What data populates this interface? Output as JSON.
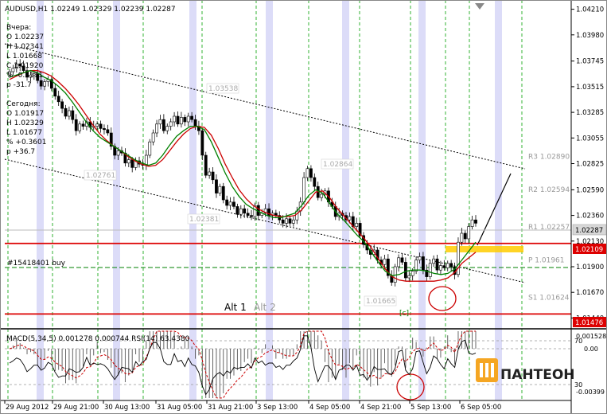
{
  "header": {
    "symbol_line": "AUDUSD,H1  1.02249 1.02329 1.02239 1.02287",
    "macd_label": "MACD(5,34,5) 0.001278 0.000744",
    "rsi_label": "RSI(14) 63.4380"
  },
  "info_panel": {
    "yesterday_title": "Вчера:",
    "yesterday": [
      "O 1.02237",
      "H 1.02341",
      "L 1.01668",
      "C 1.01920",
      "% -0.3111",
      "p -31.7"
    ],
    "today_title": "Сегодня:",
    "today": [
      "O 1.01917",
      "H 1.02329",
      "L 1.01677",
      "% +0.3601",
      "p +36.7"
    ]
  },
  "order_label": "#15418401 buy",
  "wave_labels": {
    "alt1": "Alt 1",
    "alt2": "Alt 2",
    "c": "[c]"
  },
  "pivots": [
    {
      "label": "R3",
      "value": "1.02890"
    },
    {
      "label": "R2",
      "value": "1.02594"
    },
    {
      "label": "R1",
      "value": "1.02257"
    },
    {
      "label": "P",
      "value": "1.01961"
    },
    {
      "label": "S1",
      "value": "1.01624"
    }
  ],
  "faded_price_labels": [
    "1.03538",
    "1.02761",
    "1.02864",
    "1.02381",
    "1.01665"
  ],
  "price_tags": {
    "current": "1.02287",
    "support_top": "1.02109",
    "support_bottom": "1.01476"
  },
  "logo_text": "ПАНТЕОН",
  "colors": {
    "bull_candle": "#ffffff",
    "bear_candle": "#000000",
    "ma_fast": "#008000",
    "ma_slow": "#cc0000",
    "support": "#dd0000",
    "highlight": "#ffcc00",
    "vgrid": "#00a000",
    "time_band": "#dcdcf8"
  },
  "chart_data": {
    "type": "candlestick",
    "title": "AUDUSD,H1",
    "y_ticks": [
      "1.04210",
      "1.03980",
      "1.03745",
      "1.03515",
      "1.03285",
      "1.03055",
      "1.02825",
      "1.02590",
      "1.02360",
      "1.02130",
      "1.01900",
      "1.01670",
      "1.01440"
    ],
    "x_ticks": [
      "29 Aug 2012",
      "29 Aug 21:00",
      "30 Aug 13:00",
      "31 Aug 05:00",
      "31 Aug 21:00",
      "3 Sep 13:00",
      "4 Sep 05:00",
      "4 Sep 21:00",
      "5 Sep 13:00",
      "6 Sep 05:00"
    ],
    "ylim": [
      1.0135,
      1.0425
    ],
    "price_path": [
      1.0365,
      1.0368,
      1.0372,
      1.037,
      1.0366,
      1.036,
      1.0362,
      1.0363,
      1.0357,
      1.0352,
      1.0356,
      1.0358,
      1.035,
      1.0343,
      1.0338,
      1.0332,
      1.0325,
      1.033,
      1.0322,
      1.0312,
      1.0318,
      1.0316,
      1.032,
      1.0315,
      1.0316,
      1.0318,
      1.0314,
      1.0313,
      1.031,
      1.0298,
      1.029,
      1.0294,
      1.0292,
      1.0283,
      1.0286,
      1.0279,
      1.0285,
      1.0282,
      1.0281,
      1.029,
      1.0302,
      1.031,
      1.0318,
      1.0322,
      1.0312,
      1.0316,
      1.032,
      1.0325,
      1.0318,
      1.0324,
      1.032,
      1.0325,
      1.0322,
      1.0316,
      1.0312,
      1.029,
      1.0272,
      1.0275,
      1.0268,
      1.0256,
      1.0262,
      1.025,
      1.0245,
      1.0248,
      1.0244,
      1.0237,
      1.0242,
      1.0238,
      1.0236,
      1.0235,
      1.0245,
      1.0236,
      1.0238,
      1.0242,
      1.0236,
      1.0238,
      1.0236,
      1.0232,
      1.0229,
      1.0233,
      1.0229,
      1.0232,
      1.024,
      1.0248,
      1.027,
      1.0278,
      1.027,
      1.0262,
      1.0252,
      1.0255,
      1.0258,
      1.0248,
      1.0244,
      1.0235,
      1.0238,
      1.0236,
      1.0232,
      1.0235,
      1.0226,
      1.0229,
      1.0218,
      1.021,
      1.0205,
      1.0201,
      1.0205,
      1.0196,
      1.0192,
      1.0197,
      1.0182,
      1.0176,
      1.019,
      1.0198,
      1.0194,
      1.018,
      1.0182,
      1.0186,
      1.0196,
      1.0199,
      1.0187,
      1.0181,
      1.0193,
      1.0197,
      1.0187,
      1.0191,
      1.0189,
      1.0193,
      1.019,
      1.0183,
      1.0212,
      1.022,
      1.0215,
      1.0226,
      1.0232,
      1.0229
    ],
    "ma_fast_path": [
      1.036,
      1.0362,
      1.0364,
      1.0366,
      1.0364,
      1.036,
      1.0357,
      1.0352,
      1.0346,
      1.0338,
      1.0329,
      1.032,
      1.0312,
      1.0306,
      1.0302,
      1.0298,
      1.0294,
      1.029,
      1.0286,
      1.0283,
      1.0281,
      1.0283,
      1.029,
      1.0299,
      1.0307,
      1.0312,
      1.0316,
      1.0316,
      1.0313,
      1.0302,
      1.0288,
      1.0274,
      1.0262,
      1.0253,
      1.0246,
      1.0242,
      1.0239,
      1.0236,
      1.0234,
      1.0234,
      1.0236,
      1.0238,
      1.0245,
      1.0254,
      1.0259,
      1.0256,
      1.0247,
      1.0238,
      1.0232,
      1.0225,
      1.0218,
      1.0212,
      1.0203,
      1.0194,
      1.0186,
      1.0182,
      1.0183,
      1.0186,
      1.0187,
      1.0187,
      1.0186,
      1.0184,
      1.0183,
      1.0184,
      1.0188,
      1.0196,
      1.0204,
      1.0212
    ],
    "ma_slow_path": [
      1.0358,
      1.0361,
      1.0364,
      1.0366,
      1.0366,
      1.0364,
      1.0361,
      1.0356,
      1.035,
      1.0343,
      1.0335,
      1.0326,
      1.0317,
      1.0309,
      1.0303,
      1.0298,
      1.0294,
      1.0289,
      1.0285,
      1.0282,
      1.028,
      1.0281,
      1.0286,
      1.0294,
      1.0302,
      1.0309,
      1.0314,
      1.0316,
      1.0315,
      1.0308,
      1.0296,
      1.0282,
      1.027,
      1.0259,
      1.0251,
      1.0245,
      1.0241,
      1.0238,
      1.0236,
      1.0235,
      1.0235,
      1.0236,
      1.0241,
      1.0249,
      1.0257,
      1.0258,
      1.0252,
      1.0243,
      1.0236,
      1.0229,
      1.0222,
      1.0215,
      1.0207,
      1.0197,
      1.0188,
      1.0181,
      1.0178,
      1.0177,
      1.0177,
      1.0177,
      1.0177,
      1.0177,
      1.0178,
      1.018,
      1.0185,
      1.0193,
      1.0198,
      1.0203
    ],
    "support_levels": [
      1.02109,
      1.01476
    ],
    "pivot_levels": [
      1.0289,
      1.02594,
      1.02257,
      1.01961,
      1.01624
    ],
    "macd": {
      "ylim": [
        -0.0045,
        0.0018
      ],
      "y_ticks": [
        "0.001528",
        "0.00",
        "-0.00399"
      ],
      "rsi_levels": [
        "70",
        "30"
      ]
    }
  }
}
